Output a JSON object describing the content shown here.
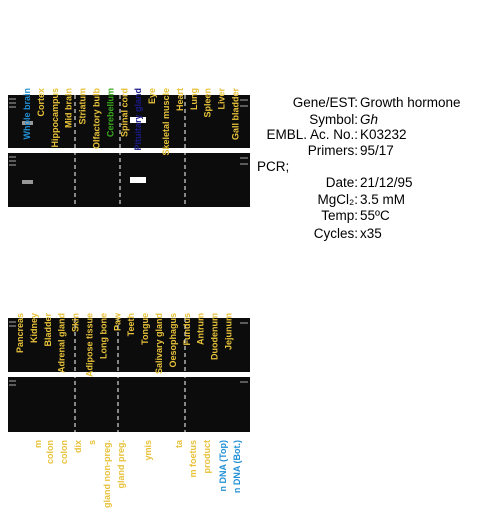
{
  "top_lanes": [
    {
      "label": "Whole brain",
      "color": "#1f8fd6"
    },
    {
      "label": "Cortex",
      "color": "#e8c23a"
    },
    {
      "label": "Hippocampus",
      "color": "#e8c23a"
    },
    {
      "label": "Mid brain",
      "color": "#e8c23a"
    },
    {
      "label": "Striatum",
      "color": "#e8c23a"
    },
    {
      "label": "Olfactory bulb",
      "color": "#e8c23a"
    },
    {
      "label": "Cerebellum",
      "color": "#3aa81e"
    },
    {
      "label": "Spinal cord",
      "color": "#e8c23a"
    },
    {
      "label": "Pituitary gland",
      "color": "#1a1a8c"
    },
    {
      "label": "Eye",
      "color": "#e8c23a"
    },
    {
      "label": "Skeletal muscle",
      "color": "#e8c23a"
    },
    {
      "label": "Heart",
      "color": "#e8c23a"
    },
    {
      "label": "Lung",
      "color": "#e8c23a"
    },
    {
      "label": "Spleen",
      "color": "#e8c23a"
    },
    {
      "label": "Liver",
      "color": "#e8c23a"
    },
    {
      "label": "Gall bladder",
      "color": "#e8c23a"
    }
  ],
  "middle_lanes": [
    {
      "label": "Pancreas",
      "color": "#e8c23a"
    },
    {
      "label": "Kidney",
      "color": "#e8c23a"
    },
    {
      "label": "Bladder",
      "color": "#e8c23a"
    },
    {
      "label": "Adrenal gland",
      "color": "#e8c23a"
    },
    {
      "label": "Skin",
      "color": "#e8c23a"
    },
    {
      "label": "Adipose tissue",
      "color": "#e8c23a"
    },
    {
      "label": "Long bone",
      "color": "#e8c23a"
    },
    {
      "label": "Paw",
      "color": "#e8c23a"
    },
    {
      "label": "Teeth",
      "color": "#e8c23a"
    },
    {
      "label": "Tongue",
      "color": "#e8c23a"
    },
    {
      "label": "Salivary gland",
      "color": "#e8c23a"
    },
    {
      "label": "Oesophagus",
      "color": "#e8c23a"
    },
    {
      "label": "Fundus",
      "color": "#e8c23a"
    },
    {
      "label": "Antrum",
      "color": "#e8c23a"
    },
    {
      "label": "Duodenum",
      "color": "#e8c23a"
    },
    {
      "label": "Jejunum",
      "color": "#e8c23a"
    }
  ],
  "bottom_lanes": [
    {
      "label": "m",
      "color": "#e8c23a"
    },
    {
      "label": "colon",
      "color": "#e8c23a"
    },
    {
      "label": "colon",
      "color": "#e8c23a"
    },
    {
      "label": "dix",
      "color": "#e8c23a"
    },
    {
      "label": "s",
      "color": "#e8c23a"
    },
    {
      "label": "gland non-preg.",
      "color": "#e8c23a"
    },
    {
      "label": "gland preg.",
      "color": "#e8c23a"
    },
    {
      "label": "ymis",
      "color": "#e8c23a"
    },
    {
      "label": "ta",
      "color": "#e8c23a"
    },
    {
      "label": "m foetus",
      "color": "#e8c23a"
    },
    {
      "label": "product",
      "color": "#e8c23a"
    },
    {
      "label": "n DNA (Top)",
      "color": "#1f8fd6"
    },
    {
      "label": "n DNA (Bot.)",
      "color": "#1f8fd6"
    }
  ],
  "info": {
    "rows": [
      {
        "key": "Gene/EST:",
        "value": "Growth hormone"
      },
      {
        "key": "Symbol:",
        "value": "Gh"
      },
      {
        "key": "EMBL. Ac. No.:",
        "value": "K03232"
      },
      {
        "key": "Primers:",
        "value": "95/17"
      }
    ],
    "pcr_heading": "PCR;",
    "pcr_rows": [
      {
        "key": "Date:",
        "value": "21/12/95"
      },
      {
        "key": "MgCl₂:",
        "value": "3.5 mM"
      },
      {
        "key": "Temp:",
        "value": "55ºC"
      },
      {
        "key": "Cycles:",
        "value": "x35"
      }
    ]
  }
}
